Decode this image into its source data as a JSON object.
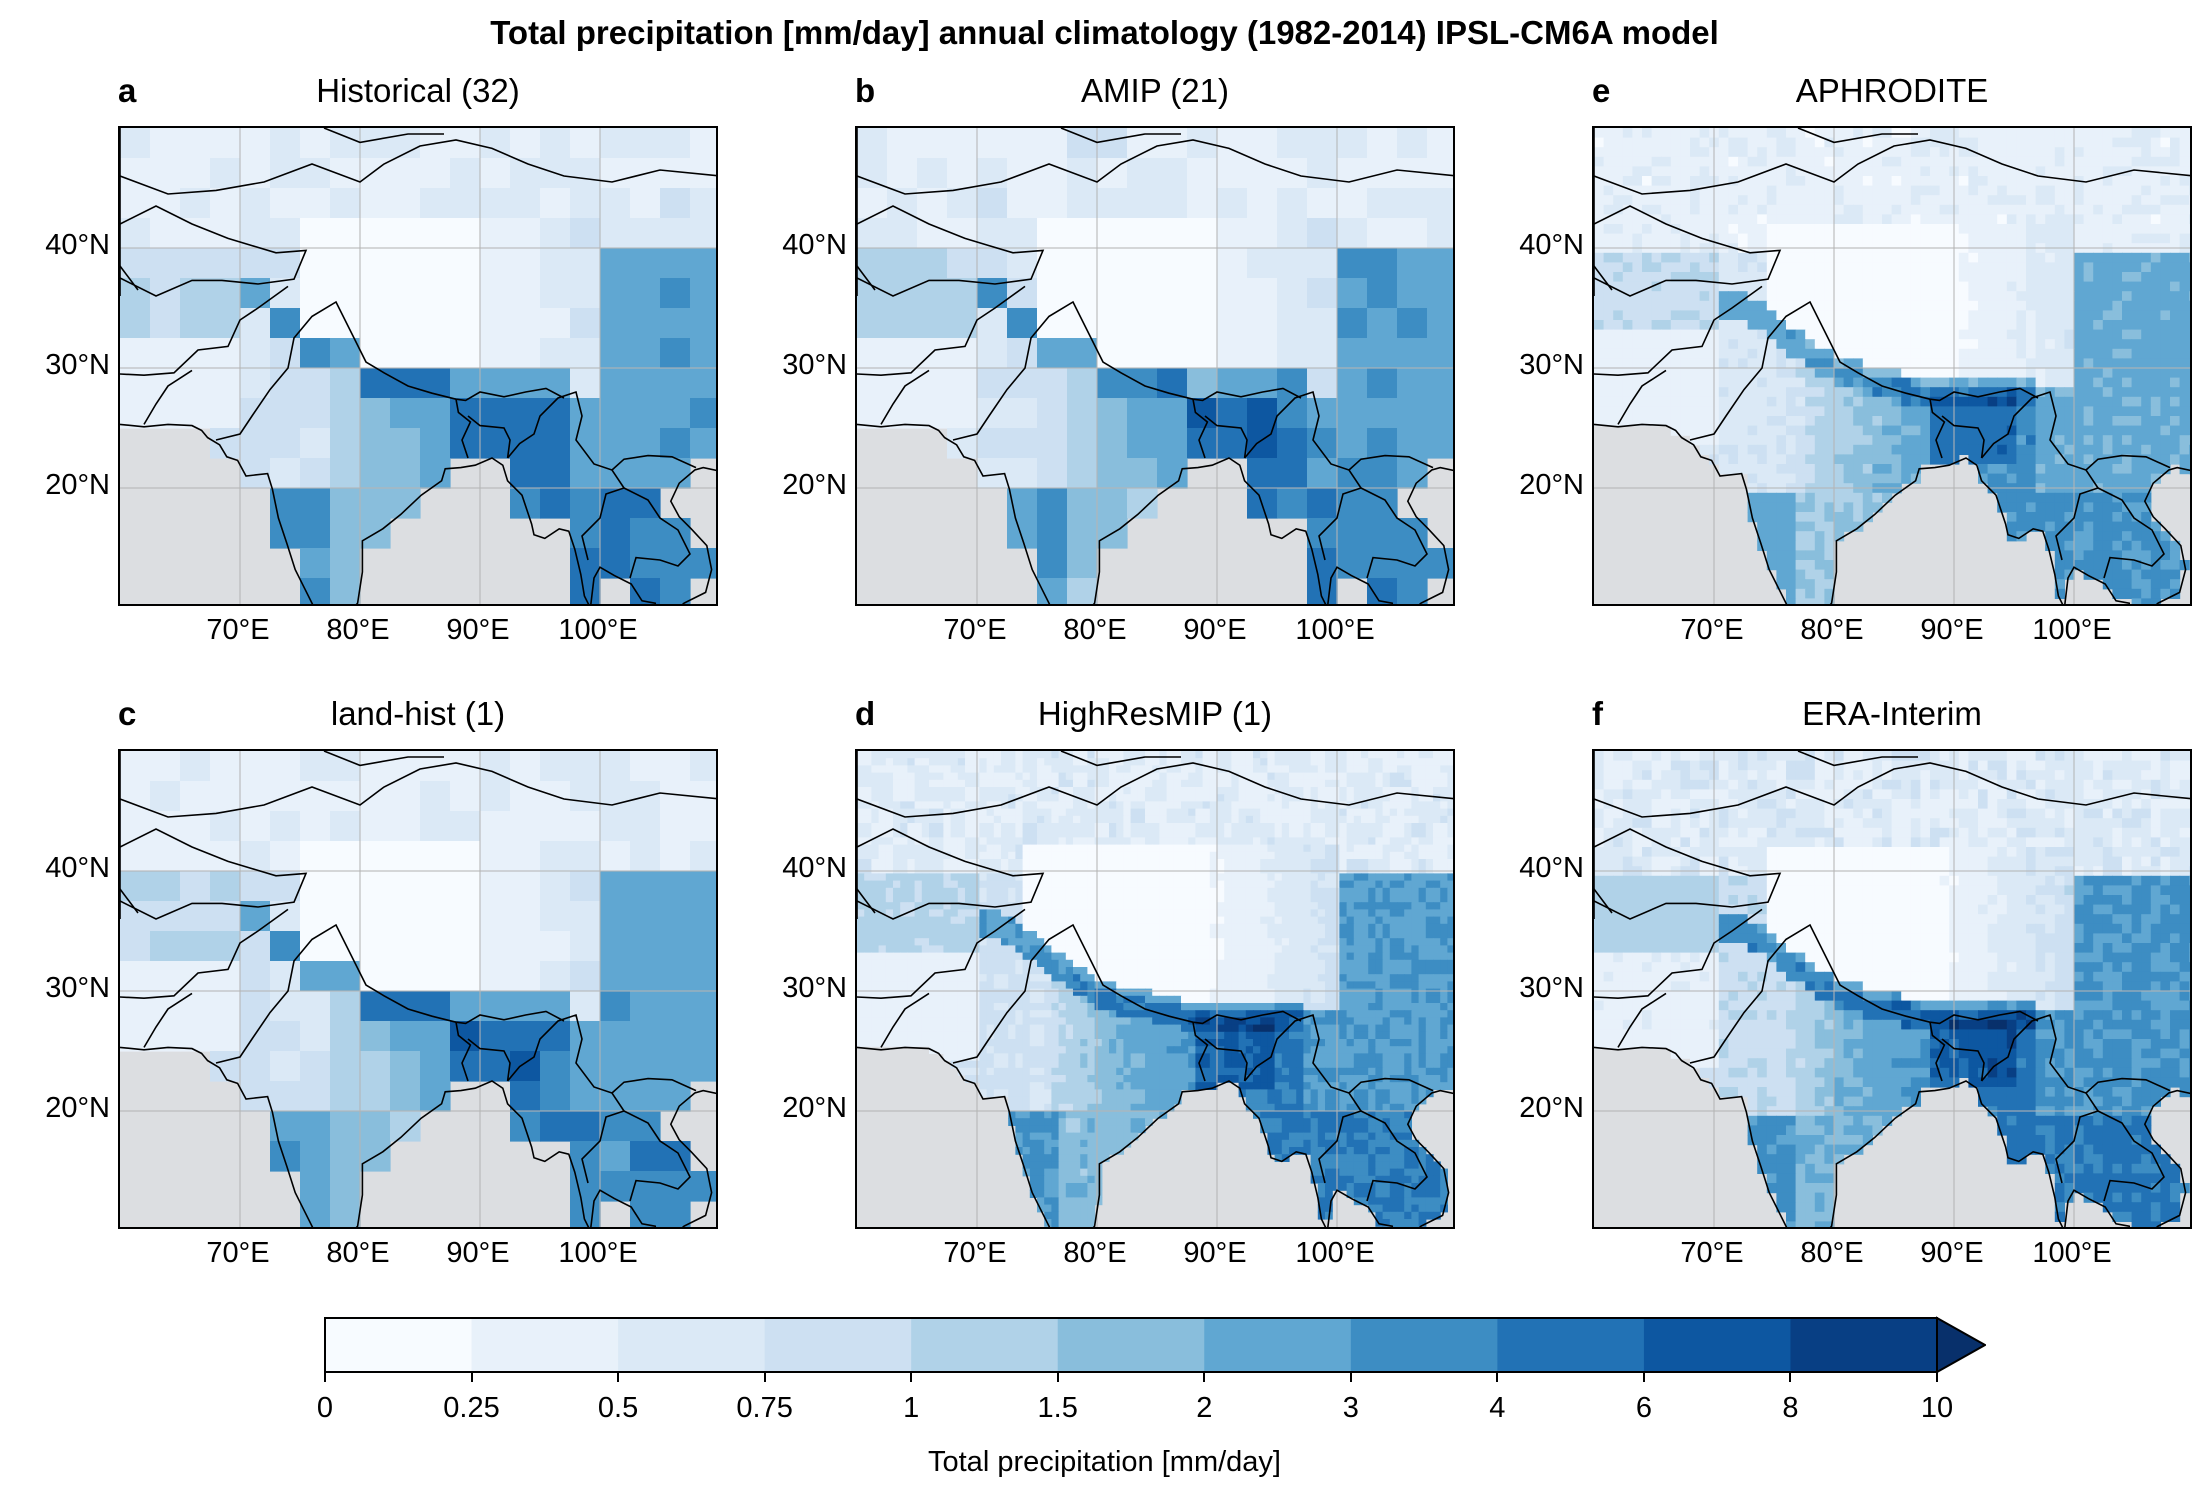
{
  "figure_title": "Total precipitation [mm/day] annual climatology (1982-2014) IPSL-CM6A model",
  "colors": {
    "ocean": "#dcdee1",
    "grid": "#b5b5b5",
    "border": "#000000",
    "levels": [
      "#f7fbff",
      "#e8f1fa",
      "#dbe9f6",
      "#cde0f2",
      "#b0d2e8",
      "#89bedc",
      "#60a7d2",
      "#3d8dc3",
      "#2272b5",
      "#0d57a1",
      "#083f84",
      "#08306b"
    ]
  },
  "chart_data": {
    "type": "heatmap",
    "colorbar": {
      "label": "Total precipitation [mm/day]",
      "levels": [
        0,
        0.25,
        0.5,
        0.75,
        1,
        1.5,
        2,
        3,
        4,
        6,
        8,
        10
      ],
      "tick_labels": [
        "0",
        "0.25",
        "0.5",
        "0.75",
        "1",
        "1.5",
        "2",
        "3",
        "4",
        "6",
        "8",
        "10"
      ],
      "extend": "max"
    },
    "axes": {
      "lon_range": [
        60,
        110
      ],
      "lat_range": [
        10,
        50
      ],
      "lon_ticks": [
        70,
        80,
        90,
        100
      ],
      "lon_tick_labels": [
        "70°E",
        "80°E",
        "90°E",
        "100°E"
      ],
      "lat_ticks": [
        20,
        30,
        40
      ],
      "lat_tick_labels": [
        "20°N",
        "30°N",
        "40°N"
      ],
      "grid": true
    },
    "panels": [
      {
        "letter": "a",
        "title": "Historical (32)",
        "resolution_deg": 2.5,
        "scale": 1.0
      },
      {
        "letter": "b",
        "title": "AMIP (21)",
        "resolution_deg": 2.5,
        "scale": 1.0
      },
      {
        "letter": "e",
        "title": "APHRODITE",
        "resolution_deg": 0.8,
        "scale": 0.85
      },
      {
        "letter": "c",
        "title": "land-hist (1)",
        "resolution_deg": 2.5,
        "scale": 0.95
      },
      {
        "letter": "d",
        "title": "HighResMIP (1)",
        "resolution_deg": 0.6,
        "scale": 1.05
      },
      {
        "letter": "f",
        "title": "ERA-Interim",
        "resolution_deg": 0.8,
        "scale": 1.15
      }
    ]
  }
}
